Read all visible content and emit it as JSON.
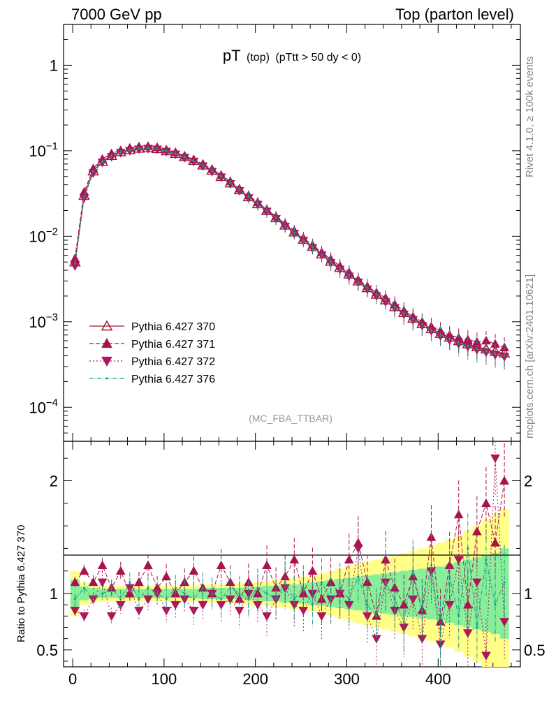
{
  "header": {
    "left": "7000 GeV pp",
    "right": "Top (parton level)"
  },
  "side_labels": {
    "rivet": "Rivet 4.1.0, ≥ 100k events",
    "mcplots": "mcplots.cern.ch [arXiv:2401.10621]"
  },
  "plot_title": {
    "main": "pT",
    "sub": "(top)",
    "cut": "(pTtt > 50 dy < 0)"
  },
  "analysis_label": "(MC_FBA_TTBAR)",
  "colors": {
    "370": "#9e1b32",
    "371": "#a8124f",
    "372": "#b0155a",
    "376": "#17998c",
    "band_yellow": "#ffff88",
    "band_green": "#88ee99"
  },
  "chart_data": {
    "type": "line",
    "xlim": [
      -10,
      490
    ],
    "upper": {
      "yscale": "log",
      "ylim": [
        4e-05,
        3
      ],
      "yticks": [
        1,
        0.1,
        0.01,
        0.001,
        0.0001
      ],
      "ytick_labels": [
        {
          "base": "1",
          "exp": ""
        },
        {
          "base": "10",
          "exp": "−1"
        },
        {
          "base": "10",
          "exp": "−2"
        },
        {
          "base": "10",
          "exp": "−3"
        },
        {
          "base": "10",
          "exp": "−4"
        }
      ]
    },
    "lower": {
      "ylabel": "Ratio to Pythia 6.427 370",
      "ylim": [
        0.35,
        2.35
      ],
      "yticks": [
        0.5,
        1,
        2
      ],
      "ytick_labels": [
        "0.5",
        "1",
        "2"
      ]
    },
    "xticks": [
      0,
      100,
      200,
      300,
      400
    ],
    "xtick_labels": [
      "0",
      "100",
      "200",
      "300",
      "400"
    ],
    "x": [
      2.5,
      12.5,
      22.5,
      32.5,
      42.5,
      52.5,
      62.5,
      72.5,
      82.5,
      92.5,
      102.5,
      112.5,
      122.5,
      132.5,
      142.5,
      152.5,
      162.5,
      172.5,
      182.5,
      192.5,
      202.5,
      212.5,
      222.5,
      232.5,
      242.5,
      252.5,
      262.5,
      272.5,
      282.5,
      292.5,
      302.5,
      312.5,
      322.5,
      332.5,
      342.5,
      352.5,
      362.5,
      372.5,
      382.5,
      392.5,
      402.5,
      412.5,
      422.5,
      432.5,
      442.5,
      452.5,
      462.5,
      472.5
    ],
    "series": [
      {
        "name": "Pythia 6.427 370",
        "values": [
          0.005,
          0.03,
          0.058,
          0.075,
          0.088,
          0.097,
          0.103,
          0.107,
          0.108,
          0.106,
          0.1,
          0.093,
          0.085,
          0.077,
          0.068,
          0.059,
          0.05,
          0.042,
          0.035,
          0.029,
          0.024,
          0.02,
          0.0165,
          0.0135,
          0.0112,
          0.0092,
          0.0076,
          0.0062,
          0.0051,
          0.0043,
          0.0036,
          0.003,
          0.0025,
          0.0021,
          0.0018,
          0.0015,
          0.00128,
          0.0011,
          0.00095,
          0.00083,
          0.00073,
          0.00066,
          0.0006,
          0.00055,
          0.00051,
          0.00048,
          0.00045,
          0.00043
        ],
        "ratio": [
          1.0,
          1.0,
          1.0,
          1.0,
          1.0,
          1.0,
          1.0,
          1.0,
          1.0,
          1.0,
          1.0,
          1.0,
          1.0,
          1.0,
          1.0,
          1.0,
          1.0,
          1.0,
          1.0,
          1.0,
          1.0,
          1.0,
          1.0,
          1.0,
          1.0,
          1.0,
          1.0,
          1.0,
          1.0,
          1.0,
          1.0,
          1.0,
          1.0,
          1.0,
          1.0,
          1.0,
          1.0,
          1.0,
          1.0,
          1.0,
          1.0,
          1.0,
          1.0,
          1.0,
          1.0,
          1.0,
          1.0,
          1.0
        ],
        "band_yellow": [
          0.2,
          0.1,
          0.08,
          0.07,
          0.07,
          0.07,
          0.07,
          0.07,
          0.07,
          0.07,
          0.07,
          0.07,
          0.07,
          0.07,
          0.08,
          0.08,
          0.08,
          0.09,
          0.09,
          0.1,
          0.1,
          0.11,
          0.12,
          0.13,
          0.14,
          0.15,
          0.16,
          0.18,
          0.2,
          0.22,
          0.24,
          0.26,
          0.28,
          0.3,
          0.32,
          0.34,
          0.36,
          0.38,
          0.4,
          0.42,
          0.45,
          0.48,
          0.52,
          0.56,
          0.6,
          0.65,
          0.7,
          0.75
        ],
        "band_green": [
          0.12,
          0.06,
          0.05,
          0.04,
          0.04,
          0.04,
          0.04,
          0.04,
          0.04,
          0.04,
          0.04,
          0.04,
          0.04,
          0.04,
          0.05,
          0.05,
          0.05,
          0.05,
          0.05,
          0.06,
          0.06,
          0.07,
          0.07,
          0.08,
          0.08,
          0.09,
          0.1,
          0.11,
          0.12,
          0.13,
          0.14,
          0.15,
          0.16,
          0.17,
          0.18,
          0.19,
          0.2,
          0.21,
          0.22,
          0.23,
          0.24,
          0.26,
          0.28,
          0.3,
          0.32,
          0.34,
          0.36,
          0.4
        ]
      },
      {
        "name": "Pythia 6.427 371",
        "values": [
          0.0055,
          0.033,
          0.062,
          0.08,
          0.093,
          0.101,
          0.108,
          0.112,
          0.113,
          0.11,
          0.103,
          0.096,
          0.087,
          0.079,
          0.07,
          0.061,
          0.052,
          0.044,
          0.036,
          0.03,
          0.025,
          0.0205,
          0.017,
          0.014,
          0.0116,
          0.0095,
          0.0079,
          0.0065,
          0.0054,
          0.0045,
          0.0038,
          0.0031,
          0.0026,
          0.0022,
          0.0019,
          0.0016,
          0.00135,
          0.00115,
          0.001,
          0.00088,
          0.00078,
          0.0007,
          0.00065,
          0.00062,
          0.00058,
          0.0006,
          0.00055,
          0.0005
        ],
        "ratio": [
          1.1,
          1.2,
          1.1,
          1.25,
          1.05,
          1.2,
          1.0,
          1.1,
          1.25,
          1.05,
          1.15,
          1.0,
          1.1,
          1.2,
          1.05,
          1.0,
          1.25,
          1.1,
          0.95,
          1.1,
          1.0,
          1.25,
          1.05,
          1.15,
          1.3,
          1.0,
          1.2,
          0.95,
          1.1,
          1.0,
          1.3,
          1.45,
          1.1,
          0.8,
          1.3,
          1.05,
          0.9,
          1.15,
          0.85,
          1.5,
          0.75,
          1.25,
          1.7,
          0.9,
          1.55,
          1.8,
          1.45,
          2.0
        ]
      },
      {
        "name": "Pythia 6.427 372",
        "values": [
          0.0045,
          0.028,
          0.055,
          0.073,
          0.085,
          0.095,
          0.1,
          0.104,
          0.106,
          0.104,
          0.098,
          0.091,
          0.083,
          0.075,
          0.066,
          0.057,
          0.049,
          0.041,
          0.034,
          0.028,
          0.0235,
          0.0195,
          0.016,
          0.013,
          0.0108,
          0.0089,
          0.0073,
          0.006,
          0.0049,
          0.0041,
          0.0034,
          0.0029,
          0.0024,
          0.002,
          0.0017,
          0.00145,
          0.00122,
          0.00105,
          0.0009,
          0.00078,
          0.00068,
          0.00061,
          0.00055,
          0.00051,
          0.00047,
          0.00044,
          0.00041,
          0.00039
        ],
        "ratio": [
          0.85,
          0.8,
          0.95,
          1.1,
          0.8,
          0.9,
          1.05,
          0.85,
          0.95,
          1.0,
          0.85,
          0.9,
          0.95,
          0.85,
          0.9,
          1.0,
          0.9,
          0.95,
          0.85,
          1.0,
          0.9,
          0.8,
          0.95,
          1.05,
          0.9,
          0.85,
          1.0,
          0.8,
          0.95,
          1.0,
          0.9,
          1.4,
          0.8,
          0.6,
          1.1,
          0.85,
          0.7,
          0.95,
          0.6,
          1.2,
          0.55,
          0.9,
          1.3,
          0.65,
          1.1,
          0.45,
          2.2,
          0.75
        ]
      },
      {
        "name": "Pythia 6.427 376",
        "values": [
          0.0048,
          0.029,
          0.057,
          0.074,
          0.087,
          0.096,
          0.102,
          0.106,
          0.107,
          0.105,
          0.099,
          0.092,
          0.084,
          0.076,
          0.067,
          0.058,
          0.05,
          0.042,
          0.035,
          0.029,
          0.024,
          0.02,
          0.0163,
          0.0133,
          0.011,
          0.009,
          0.0075,
          0.0061,
          0.005,
          0.0042,
          0.0035,
          0.0029,
          0.0025,
          0.0021,
          0.0018,
          0.0015,
          0.00125,
          0.00108,
          0.00093,
          0.0008,
          0.00071,
          0.00063,
          0.00057,
          0.00052,
          0.00048,
          0.00045,
          0.00042,
          0.0004
        ],
        "ratio": [
          0.95,
          1.05,
          0.95,
          1.0,
          1.05,
          0.95,
          1.1,
          0.95,
          1.05,
          1.0,
          0.95,
          1.05,
          1.0,
          0.95,
          1.05,
          1.0,
          0.95,
          1.05,
          1.0,
          0.95,
          1.05,
          1.0,
          0.95,
          1.1,
          0.95,
          1.05,
          0.9,
          1.1,
          0.95,
          1.05,
          0.95,
          1.15,
          0.9,
          0.8,
          1.1,
          0.95,
          0.75,
          1.2,
          0.85,
          1.25,
          0.65,
          1.15,
          0.8,
          1.4,
          0.7,
          1.3,
          0.9,
          1.1
        ]
      }
    ]
  }
}
